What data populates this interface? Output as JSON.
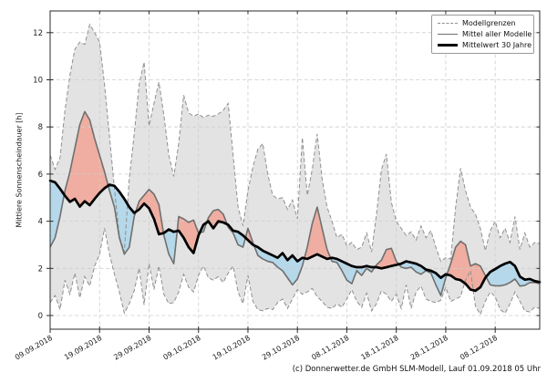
{
  "footer": {
    "text": "(c) Donnerwetter.de GmbH SLM-Modell, Lauf 01.09.2018 05 Uhr"
  },
  "legend": {
    "items": [
      {
        "label": "Modellgrenzen",
        "style": "dashed-gray"
      },
      {
        "label": "Mittel aller Modelle",
        "style": "solid-gray"
      },
      {
        "label": "Mittelwert 30 Jahre",
        "style": "solid-black"
      }
    ]
  },
  "chart_data": {
    "type": "line",
    "title": "",
    "xlabel": "",
    "ylabel": "Mittlere Sonnenscheindauer [h]",
    "ylim": [
      -0.6,
      12.95
    ],
    "y_ticks": [
      0,
      2,
      4,
      6,
      8,
      10,
      12
    ],
    "grid": true,
    "legend_position": "top-right",
    "x_tick_days": [
      0,
      10,
      20,
      30,
      40,
      50,
      60,
      70,
      80,
      90
    ],
    "x_tick_labels": [
      "09.09.2018",
      "19.09.2018",
      "29.09.2018",
      "09.10.2018",
      "19.10.2018",
      "29.10.2018",
      "08.11.2018",
      "18.11.2018",
      "28.11.2018",
      "08.12.2018"
    ],
    "series": [
      {
        "name": "Modellgrenzen",
        "role": "upper_bound",
        "values": [
          6.8,
          6.2,
          6.7,
          8.7,
          10.2,
          11.3,
          11.6,
          11.5,
          12.35,
          12.0,
          11.6,
          9.8,
          7.6,
          5.4,
          3.35,
          2.7,
          5.8,
          7.7,
          9.8,
          10.75,
          8.05,
          9.0,
          9.9,
          8.5,
          6.8,
          5.9,
          7.3,
          9.35,
          8.6,
          8.45,
          8.55,
          8.4,
          8.5,
          8.45,
          8.55,
          8.7,
          9.0,
          6.8,
          4.6,
          3.8,
          5.3,
          6.3,
          7.05,
          7.3,
          6.0,
          5.1,
          4.95,
          5.0,
          4.5,
          4.9,
          4.1,
          7.55,
          5.1,
          6.2,
          7.7,
          5.8,
          4.6,
          4.0,
          3.3,
          3.45,
          2.95,
          3.1,
          2.8,
          2.9,
          3.5,
          2.7,
          4.3,
          6.2,
          6.85,
          4.8,
          4.0,
          3.7,
          3.4,
          3.55,
          3.2,
          3.8,
          3.3,
          3.6,
          2.9,
          2.3,
          2.45,
          2.4,
          4.6,
          6.25,
          5.3,
          4.6,
          4.3,
          3.7,
          2.75,
          3.6,
          4.0,
          3.3,
          3.7,
          3.1,
          4.2,
          2.8,
          3.5,
          2.9,
          3.1,
          3.05
        ]
      },
      {
        "name": "Modellgrenzen",
        "role": "lower_bound",
        "values": [
          0.55,
          0.85,
          0.25,
          1.5,
          0.9,
          1.8,
          0.75,
          1.65,
          1.25,
          2.1,
          2.6,
          3.7,
          2.6,
          1.75,
          1.0,
          0.1,
          0.5,
          1.05,
          2.0,
          0.45,
          2.2,
          1.1,
          2.1,
          0.9,
          0.5,
          0.55,
          1.0,
          1.75,
          1.2,
          1.0,
          1.7,
          2.1,
          1.6,
          1.5,
          1.65,
          1.4,
          1.8,
          2.1,
          1.0,
          0.5,
          1.7,
          0.6,
          0.25,
          0.2,
          0.3,
          0.25,
          0.55,
          0.7,
          0.3,
          0.7,
          1.1,
          0.9,
          1.0,
          1.15,
          0.8,
          0.6,
          0.35,
          0.3,
          0.5,
          0.35,
          0.7,
          1.1,
          0.6,
          0.35,
          0.95,
          0.2,
          0.5,
          1.05,
          0.9,
          0.6,
          0.9,
          0.3,
          1.3,
          0.3,
          1.0,
          1.25,
          0.7,
          0.6,
          0.55,
          0.65,
          1.2,
          0.6,
          0.7,
          0.8,
          1.5,
          1.9,
          0.4,
          0.05,
          0.6,
          1.0,
          0.8,
          0.25,
          0.1,
          0.5,
          1.0,
          0.6,
          0.2,
          0.15,
          0.36,
          0.3
        ]
      },
      {
        "name": "Mittel aller Modelle",
        "role": "model_mean",
        "values": [
          2.9,
          3.3,
          4.2,
          5.3,
          6.1,
          7.1,
          8.1,
          8.65,
          8.3,
          7.5,
          6.8,
          6.1,
          5.3,
          4.6,
          3.3,
          2.6,
          2.9,
          4.2,
          4.85,
          5.1,
          5.35,
          5.15,
          4.7,
          3.4,
          2.6,
          2.2,
          4.2,
          4.1,
          3.95,
          4.05,
          3.5,
          3.55,
          4.15,
          4.45,
          4.5,
          4.3,
          3.75,
          3.5,
          3.0,
          2.9,
          3.7,
          3.1,
          2.55,
          2.4,
          2.3,
          2.25,
          2.05,
          1.9,
          1.6,
          1.3,
          1.55,
          2.1,
          2.9,
          3.9,
          4.6,
          3.7,
          2.8,
          2.3,
          2.25,
          1.9,
          1.5,
          1.35,
          1.9,
          1.7,
          2.0,
          1.85,
          2.15,
          2.35,
          2.8,
          2.85,
          2.3,
          2.05,
          2.0,
          2.05,
          1.85,
          1.75,
          1.9,
          1.8,
          1.3,
          0.85,
          1.6,
          2.2,
          2.9,
          3.15,
          3.0,
          2.1,
          2.2,
          2.1,
          1.7,
          1.3,
          1.26,
          1.26,
          1.3,
          1.4,
          1.55,
          1.25,
          1.28,
          1.4,
          1.4,
          1.35
        ]
      },
      {
        "name": "Mittelwert 30 Jahre",
        "role": "climate_mean",
        "values": [
          5.72,
          5.65,
          5.38,
          5.08,
          4.82,
          4.95,
          4.62,
          4.85,
          4.68,
          4.95,
          5.2,
          5.4,
          5.55,
          5.5,
          5.25,
          4.95,
          4.6,
          4.35,
          4.5,
          4.75,
          4.55,
          4.1,
          3.45,
          3.5,
          3.65,
          3.55,
          3.6,
          3.3,
          2.9,
          2.65,
          3.4,
          3.85,
          4.0,
          3.7,
          4.0,
          3.95,
          3.85,
          3.6,
          3.55,
          3.4,
          3.2,
          3.0,
          2.9,
          2.75,
          2.65,
          2.55,
          2.45,
          2.65,
          2.35,
          2.55,
          2.3,
          2.45,
          2.4,
          2.5,
          2.6,
          2.5,
          2.4,
          2.45,
          2.4,
          2.3,
          2.2,
          2.1,
          2.05,
          2.05,
          2.1,
          2.05,
          2.05,
          2.0,
          2.05,
          2.1,
          2.15,
          2.2,
          2.3,
          2.25,
          2.2,
          2.1,
          1.95,
          1.9,
          1.8,
          1.6,
          1.75,
          1.7,
          1.55,
          1.5,
          1.35,
          1.1,
          1.05,
          1.2,
          1.6,
          1.85,
          1.97,
          2.1,
          2.2,
          2.27,
          2.1,
          1.65,
          1.52,
          1.55,
          1.46,
          1.42
        ]
      }
    ],
    "colors": {
      "band": "#e3e3e3",
      "bound_line": "#8f8f8f",
      "model_mean_line": "#6f6f6f",
      "climate_mean_line": "#000000",
      "above_fill": "#efaea1",
      "below_fill": "#b5d8ea",
      "grid": "#cdcdcd",
      "spine": "#2b2b2b",
      "text": "#1b1b1b"
    }
  }
}
